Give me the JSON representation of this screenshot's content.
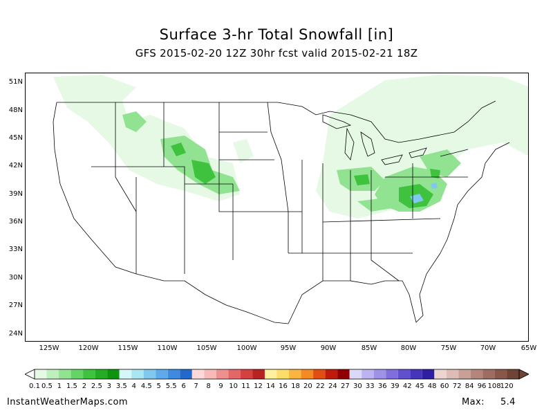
{
  "title": "Surface 3-hr Total Snowfall [in]",
  "subtitle": "GFS 2015-02-20 12Z 30hr fcst valid 2015-02-21 18Z",
  "lat_labels": [
    "51N",
    "48N",
    "45N",
    "42N",
    "39N",
    "36N",
    "33N",
    "30N",
    "27N",
    "24N"
  ],
  "lon_labels": [
    "125W",
    "120W",
    "115W",
    "110W",
    "105W",
    "100W",
    "95W",
    "90W",
    "85W",
    "80W",
    "75W",
    "70W",
    "65W"
  ],
  "colorbar": {
    "labels": [
      "0.1",
      "0.5",
      "1",
      "1.5",
      "2",
      "2.5",
      "3",
      "3.5",
      "4",
      "4.5",
      "5",
      "5.5",
      "6",
      "7",
      "8",
      "9",
      "10",
      "11",
      "12",
      "14",
      "16",
      "18",
      "20",
      "22",
      "24",
      "27",
      "30",
      "33",
      "36",
      "39",
      "42",
      "45",
      "48",
      "60",
      "72",
      "84",
      "96",
      "108",
      "120"
    ],
    "colors": [
      "#e5f9e5",
      "#bdf0bd",
      "#91e391",
      "#65d465",
      "#3fc33f",
      "#22ad22",
      "#0e930e",
      "#d7f6f8",
      "#a8e6f2",
      "#80c8ef",
      "#5eaaea",
      "#3d8ae0",
      "#2468cc",
      "#fcdada",
      "#f8b9b9",
      "#ef9090",
      "#e46767",
      "#d54040",
      "#b82222",
      "#fff0a0",
      "#fcdd6a",
      "#f8b640",
      "#f38a24",
      "#e24d12",
      "#c01a0a",
      "#900000",
      "#dcd8f8",
      "#bcb4f0",
      "#9e92e8",
      "#7f6fdc",
      "#6150ce",
      "#4534bc",
      "#2f1ea4",
      "#ecd4d0",
      "#dcbcb4",
      "#c9a096",
      "#b4857a",
      "#9e6c60",
      "#87574a",
      "#6f4336"
    ]
  },
  "footer": {
    "site": "InstantWeatherMaps.com",
    "max_label": "Max:",
    "max_value": "5.4"
  },
  "icons": {
    "colorbar_left": "triangle-left-icon",
    "colorbar_right": "triangle-right-icon"
  }
}
